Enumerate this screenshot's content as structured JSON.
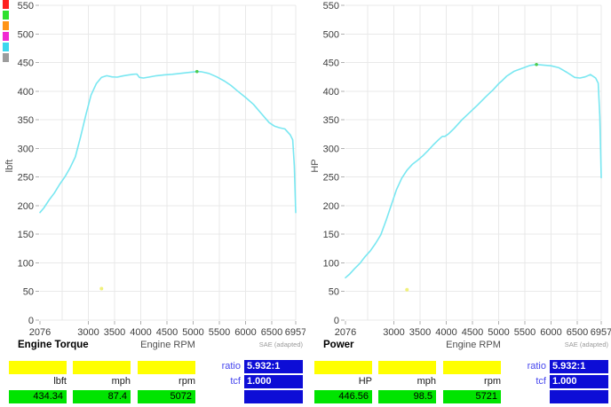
{
  "colors": {
    "background": "#ffffff",
    "grid": "#e9e9e9",
    "tick_dash": "#b0b0b0",
    "curve_cyan": "#79e7f1",
    "peak_marker_green": "#4ecb4e",
    "small_marker_yellow": "#f0f07a",
    "yellow_box": "#ffff00",
    "green_box": "#00e400",
    "blue_box": "#0d0dd6",
    "ratio_text_blue": "#4646ee"
  },
  "legend": {
    "swatches": [
      {
        "name": "run-red",
        "hex": "#ff2020"
      },
      {
        "name": "run-green",
        "hex": "#2ee02e"
      },
      {
        "name": "run-orange",
        "hex": "#ff9416"
      },
      {
        "name": "run-magenta",
        "hex": "#f128d2"
      },
      {
        "name": "run-cyan",
        "hex": "#3cd7ee"
      },
      {
        "name": "run-gray",
        "hex": "#9c9c9c"
      }
    ]
  },
  "chart_data": [
    {
      "type": "line",
      "title": "Engine Torque",
      "xlabel": "Engine RPM",
      "ylabel": "lbft",
      "sae_note": "SAE (adapted)",
      "x_range": [
        2076,
        6957
      ],
      "y_range": [
        0,
        550
      ],
      "x_ticks": [
        2076,
        3000,
        3500,
        4000,
        4500,
        5000,
        5500,
        6000,
        6500,
        6957
      ],
      "x_grid": [
        2500,
        3000,
        3500,
        4000,
        4500,
        5000,
        5500,
        6000,
        6500,
        6957
      ],
      "y_ticks": [
        0,
        50,
        100,
        150,
        200,
        250,
        300,
        350,
        400,
        450,
        500,
        550
      ],
      "curve_color": "#79e7f1",
      "peak_marker": {
        "rpm": 5072,
        "value": 434.34,
        "color": "#4ecb4e"
      },
      "small_marker": {
        "rpm": 3250,
        "value": 55,
        "color": "#f0f07a"
      },
      "points": [
        [
          2076,
          188
        ],
        [
          2150,
          196
        ],
        [
          2250,
          210
        ],
        [
          2350,
          222
        ],
        [
          2450,
          237
        ],
        [
          2550,
          250
        ],
        [
          2650,
          266
        ],
        [
          2750,
          285
        ],
        [
          2850,
          320
        ],
        [
          2950,
          358
        ],
        [
          3050,
          393
        ],
        [
          3150,
          413
        ],
        [
          3250,
          424
        ],
        [
          3350,
          427
        ],
        [
          3450,
          425
        ],
        [
          3550,
          424.5
        ],
        [
          3650,
          426.5
        ],
        [
          3750,
          428
        ],
        [
          3850,
          429.5
        ],
        [
          3925,
          430
        ],
        [
          3975,
          424
        ],
        [
          4050,
          423
        ],
        [
          4150,
          424.5
        ],
        [
          4300,
          427
        ],
        [
          4450,
          428.5
        ],
        [
          4600,
          429.5
        ],
        [
          4750,
          431
        ],
        [
          4900,
          432.5
        ],
        [
          5000,
          433.5
        ],
        [
          5072,
          434.3
        ],
        [
          5150,
          434
        ],
        [
          5200,
          433
        ],
        [
          5300,
          431
        ],
        [
          5450,
          425
        ],
        [
          5600,
          417.5
        ],
        [
          5721,
          410
        ],
        [
          5850,
          400
        ],
        [
          6000,
          389
        ],
        [
          6150,
          377
        ],
        [
          6300,
          361
        ],
        [
          6450,
          345
        ],
        [
          6550,
          339
        ],
        [
          6650,
          336
        ],
        [
          6750,
          334
        ],
        [
          6850,
          324
        ],
        [
          6900,
          315
        ],
        [
          6930,
          270
        ],
        [
          6945,
          225
        ],
        [
          6957,
          188
        ]
      ],
      "readouts": {
        "cols": [
          {
            "label": "lbft",
            "value": "434.34"
          },
          {
            "label": "mph",
            "value": "87.4"
          },
          {
            "label": "rpm",
            "value": "5072"
          }
        ],
        "ratio_label": "ratio",
        "ratio_value": "5.932:1",
        "tcf_label": "tcf",
        "tcf_value": "1.000"
      }
    },
    {
      "type": "line",
      "title": "Power",
      "xlabel": "Engine RPM",
      "ylabel": "HP",
      "sae_note": "SAE (adapted)",
      "x_range": [
        2076,
        6957
      ],
      "y_range": [
        0,
        550
      ],
      "x_ticks": [
        2076,
        3000,
        3500,
        4000,
        4500,
        5000,
        5500,
        6000,
        6500,
        6957
      ],
      "x_grid": [
        2500,
        3000,
        3500,
        4000,
        4500,
        5000,
        5500,
        6000,
        6500,
        6957
      ],
      "y_ticks": [
        0,
        50,
        100,
        150,
        200,
        250,
        300,
        350,
        400,
        450,
        500,
        550
      ],
      "curve_color": "#79e7f1",
      "peak_marker": {
        "rpm": 5721,
        "value": 446.56,
        "color": "#4ecb4e"
      },
      "small_marker": {
        "rpm": 3250,
        "value": 53,
        "color": "#f0f07a"
      },
      "points": [
        [
          2076,
          74
        ],
        [
          2150,
          80
        ],
        [
          2250,
          90
        ],
        [
          2350,
          99
        ],
        [
          2450,
          111
        ],
        [
          2550,
          121
        ],
        [
          2650,
          134
        ],
        [
          2750,
          149
        ],
        [
          2850,
          174
        ],
        [
          2950,
          201
        ],
        [
          3050,
          228
        ],
        [
          3150,
          248
        ],
        [
          3250,
          262
        ],
        [
          3350,
          272
        ],
        [
          3450,
          279
        ],
        [
          3550,
          287
        ],
        [
          3650,
          296
        ],
        [
          3750,
          306
        ],
        [
          3850,
          315
        ],
        [
          3925,
          321
        ],
        [
          3975,
          321
        ],
        [
          4050,
          326
        ],
        [
          4150,
          335
        ],
        [
          4300,
          350
        ],
        [
          4450,
          363
        ],
        [
          4600,
          376
        ],
        [
          4750,
          390
        ],
        [
          4900,
          403
        ],
        [
          5000,
          413
        ],
        [
          5072,
          419
        ],
        [
          5150,
          426
        ],
        [
          5200,
          429
        ],
        [
          5300,
          435
        ],
        [
          5450,
          440
        ],
        [
          5600,
          445
        ],
        [
          5721,
          446.6
        ],
        [
          5850,
          445.5
        ],
        [
          6000,
          444.4
        ],
        [
          6150,
          441
        ],
        [
          6300,
          433
        ],
        [
          6450,
          424
        ],
        [
          6550,
          423
        ],
        [
          6650,
          425
        ],
        [
          6750,
          429
        ],
        [
          6850,
          423
        ],
        [
          6900,
          414
        ],
        [
          6930,
          356
        ],
        [
          6945,
          298
        ],
        [
          6957,
          249
        ]
      ],
      "readouts": {
        "cols": [
          {
            "label": "HP",
            "value": "446.56"
          },
          {
            "label": "mph",
            "value": "98.5"
          },
          {
            "label": "rpm",
            "value": "5721"
          }
        ],
        "ratio_label": "ratio",
        "ratio_value": "5.932:1",
        "tcf_label": "tcf",
        "tcf_value": "1.000"
      }
    }
  ]
}
